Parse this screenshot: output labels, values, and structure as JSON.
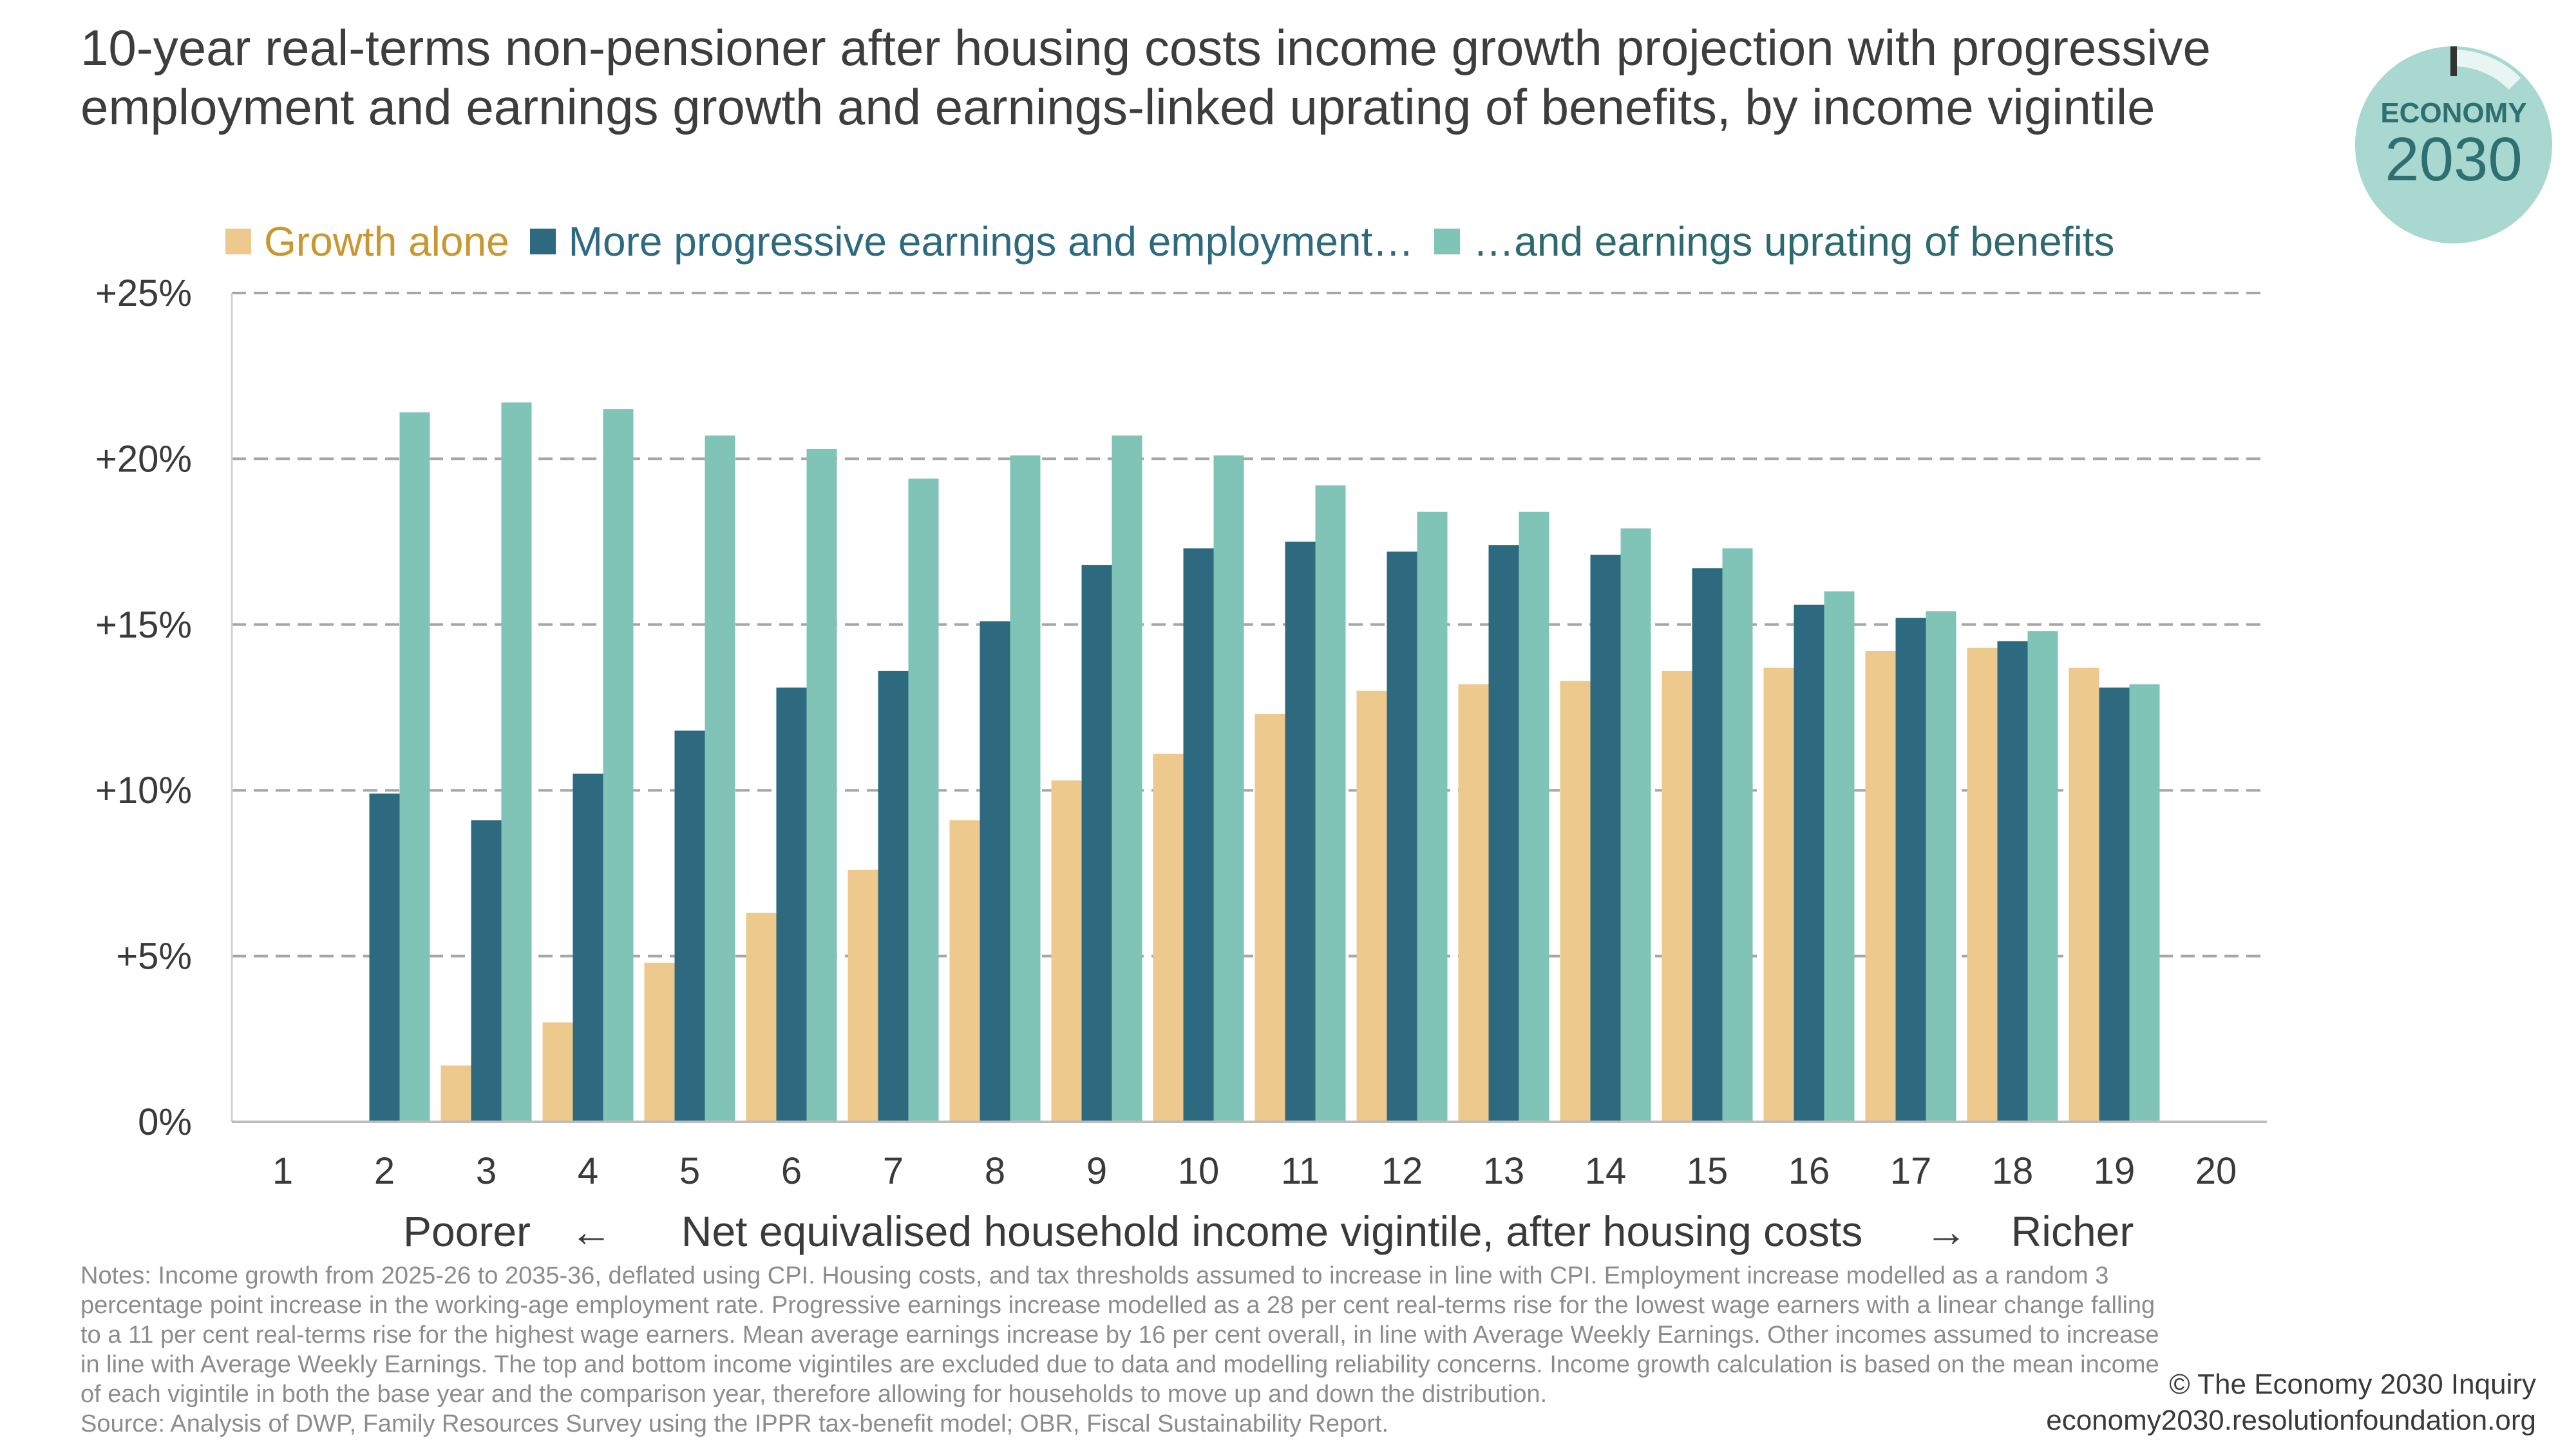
{
  "title": "10-year real-terms non-pensioner after housing costs income growth projection with progressive employment and earnings growth and earnings-linked uprating of benefits, by income vigintile",
  "logo": {
    "line1": "ECONOMY",
    "line2": "2030"
  },
  "colors": {
    "growth": "#edc98d",
    "progressive": "#2d6a80",
    "uprating": "#7fc4b6",
    "logo_bg": "#a8d8cf",
    "logo_text": "#2f6f72",
    "grid": "#a6a6a6"
  },
  "chart_data": {
    "type": "bar",
    "categories": [
      "1",
      "2",
      "3",
      "4",
      "5",
      "6",
      "7",
      "8",
      "9",
      "10",
      "11",
      "12",
      "13",
      "14",
      "15",
      "16",
      "17",
      "18",
      "19",
      "20"
    ],
    "series": [
      {
        "name": "Growth alone",
        "values": [
          null,
          null,
          1.7,
          3.0,
          4.8,
          6.3,
          7.6,
          9.1,
          10.3,
          11.1,
          12.3,
          13.0,
          13.2,
          13.3,
          13.6,
          13.7,
          14.2,
          14.3,
          13.7,
          null
        ]
      },
      {
        "name": "More progressive earnings and employment…",
        "values": [
          null,
          9.9,
          9.1,
          10.5,
          11.8,
          13.1,
          13.6,
          15.1,
          16.8,
          17.3,
          17.5,
          17.2,
          17.4,
          17.1,
          16.7,
          15.6,
          15.2,
          14.5,
          13.1,
          null
        ]
      },
      {
        "name": "…and earnings uprating of benefits",
        "values": [
          null,
          21.4,
          21.7,
          21.5,
          20.7,
          20.3,
          19.4,
          20.1,
          20.7,
          20.1,
          19.2,
          18.4,
          18.4,
          17.9,
          17.3,
          16.0,
          15.4,
          14.8,
          13.2,
          null
        ]
      }
    ],
    "yticks": [
      "0%",
      "+5%",
      "+10%",
      "+15%",
      "+20%",
      "+25%"
    ],
    "ylim": [
      0,
      25
    ],
    "grid": true,
    "legend_position": "top",
    "xlabel": {
      "left": "Poorer",
      "left_arrow": "←",
      "center": "Net equivalised household income vigintile, after housing costs",
      "right_arrow": "→",
      "right": "Richer"
    }
  },
  "notes": "Notes: Income growth from 2025-26 to 2035-36, deflated using CPI. Housing costs, and tax thresholds assumed to increase in line with CPI. Employment increase modelled as a random 3 percentage point increase in the working-age employment rate. Progressive earnings increase modelled as a 28 per cent real-terms rise for the lowest wage earners with a linear change falling to a 11 per cent real-terms rise for the highest wage earners. Mean average earnings increase by 16 per cent overall, in line with Average Weekly Earnings. Other incomes assumed to increase in line with Average Weekly Earnings. The top and bottom income vigintiles are excluded due to data and modelling reliability concerns. Income growth calculation is based on the mean income of each vigintile in both the base year and the comparison year, therefore allowing for households to move up and down the distribution.",
  "source": "Source: Analysis of DWP, Family Resources Survey using the IPPR tax-benefit model; OBR, Fiscal Sustainability Report.",
  "credit": {
    "line1": "© The Economy 2030 Inquiry",
    "line2": "economy2030.resolutionfoundation.org"
  }
}
